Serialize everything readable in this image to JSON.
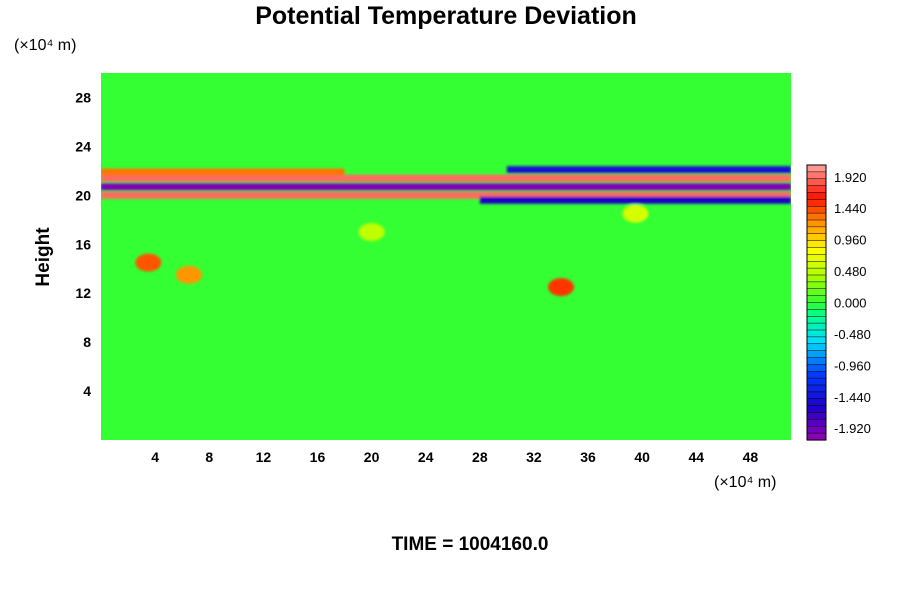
{
  "chart_data": {
    "type": "heatmap",
    "title": "Potential Temperature Deviation",
    "ylabel": "Height",
    "x_unit": "(×10⁴ m)",
    "y_unit": "(×10⁴ m)",
    "xlim": [
      0,
      51
    ],
    "ylim": [
      0,
      30
    ],
    "x_ticks": [
      4,
      8,
      12,
      16,
      20,
      24,
      28,
      32,
      36,
      40,
      44,
      48
    ],
    "y_ticks": [
      4,
      8,
      12,
      16,
      20,
      24,
      28
    ],
    "colorbar": {
      "range": [
        -2.1,
        2.1
      ],
      "labels": [
        "1.920",
        "1.440",
        "0.960",
        "0.480",
        "0.000",
        "-0.480",
        "-0.960",
        "-1.440",
        "-1.920"
      ],
      "label_values": [
        1.92,
        1.44,
        0.96,
        0.48,
        0.0,
        -0.48,
        -0.96,
        -1.44,
        -1.92
      ]
    },
    "features": [
      {
        "kind": "band",
        "x": [
          0,
          51
        ],
        "y": 20.7,
        "value": -2.0
      },
      {
        "kind": "band",
        "x": [
          0,
          51
        ],
        "y": 20.0,
        "value": 1.9
      },
      {
        "kind": "band",
        "x": [
          0,
          51
        ],
        "y": 21.4,
        "value": 1.9
      },
      {
        "kind": "band",
        "x": [
          0,
          18
        ],
        "y": 21.9,
        "value": 1.3
      },
      {
        "kind": "band",
        "x": [
          30,
          51
        ],
        "y": 22.1,
        "value": -1.5
      },
      {
        "kind": "band",
        "x": [
          28,
          51
        ],
        "y": 19.6,
        "value": -1.6
      },
      {
        "kind": "blob",
        "x": 3.5,
        "y": 14.5,
        "value": 1.4
      },
      {
        "kind": "blob",
        "x": 6.5,
        "y": 13.5,
        "value": 1.2
      },
      {
        "kind": "blob",
        "x": 34.0,
        "y": 12.5,
        "value": 1.5
      },
      {
        "kind": "blob",
        "x": 39.5,
        "y": 18.5,
        "value": 0.6
      },
      {
        "kind": "blob",
        "x": 20.0,
        "y": 17.0,
        "value": 0.5
      }
    ]
  },
  "footer": {
    "time_label": "TIME = 1004160.0"
  }
}
